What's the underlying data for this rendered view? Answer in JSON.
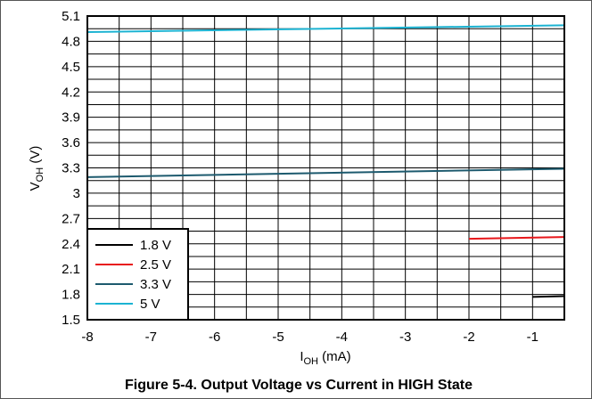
{
  "chart_data": {
    "type": "line",
    "caption": "Figure 5-4. Output Voltage vs Current in HIGH State",
    "xlabel": {
      "main": "I",
      "sub": "OH",
      "unit": " (mA)"
    },
    "ylabel": {
      "main": "V",
      "sub": "OH",
      "unit": " (V)"
    },
    "xlim": [
      -8,
      -0.5
    ],
    "ylim": [
      1.5,
      5.1
    ],
    "x_ticks": [
      "-8",
      "-7",
      "-6",
      "-5",
      "-4",
      "-3",
      "-2",
      "-1"
    ],
    "y_ticks": [
      "1.5",
      "1.8",
      "2.1",
      "2.4",
      "2.7",
      "3",
      "3.3",
      "3.6",
      "3.9",
      "4.2",
      "4.5",
      "4.8",
      "5.1"
    ],
    "grid": true,
    "legend_position": "bottom-left",
    "series": [
      {
        "name": "1.8 V",
        "color": "#000000",
        "x": [
          -1,
          -0.5
        ],
        "y": [
          1.77,
          1.78
        ]
      },
      {
        "name": "2.5 V",
        "color": "#e8171b",
        "x": [
          -2,
          -0.5
        ],
        "y": [
          2.46,
          2.48
        ]
      },
      {
        "name": "3.3 V",
        "color": "#1d5a6e",
        "x": [
          -8,
          -0.5
        ],
        "y": [
          3.19,
          3.29
        ]
      },
      {
        "name": "5 V",
        "color": "#1cb3d2",
        "x": [
          -8,
          -0.5
        ],
        "y": [
          4.91,
          4.99
        ]
      }
    ]
  }
}
